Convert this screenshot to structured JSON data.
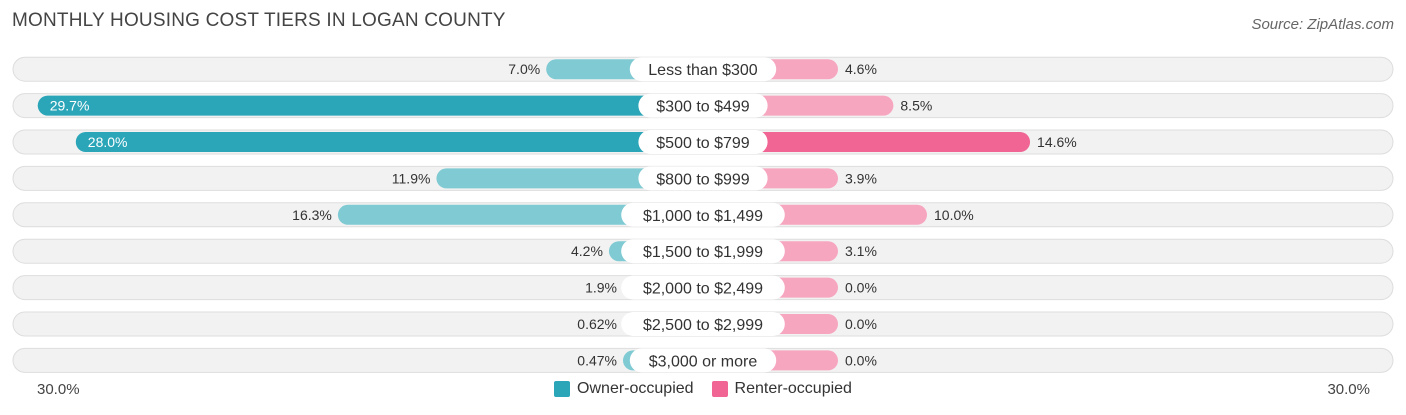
{
  "header": {
    "title": "MONTHLY HOUSING COST TIERS IN LOGAN COUNTY",
    "source": "Source: ZipAtlas.com"
  },
  "chart_data": {
    "type": "bar",
    "orientation": "horizontal-diverging",
    "title": "MONTHLY HOUSING COST TIERS IN LOGAN COUNTY",
    "categories": [
      "Less than $300",
      "$300 to $499",
      "$500 to $799",
      "$800 to $999",
      "$1,000 to $1,499",
      "$1,500 to $1,999",
      "$2,000 to $2,499",
      "$2,500 to $2,999",
      "$3,000 or more"
    ],
    "series": [
      {
        "name": "Owner-occupied",
        "color": "#2ba5b8",
        "light_color": "#7fcad3",
        "values": [
          7.0,
          29.7,
          28.0,
          11.9,
          16.3,
          4.2,
          1.9,
          0.62,
          0.47
        ],
        "labels": [
          "7.0%",
          "29.7%",
          "28.0%",
          "11.9%",
          "16.3%",
          "4.2%",
          "1.9%",
          "0.62%",
          "0.47%"
        ]
      },
      {
        "name": "Renter-occupied",
        "color": "#f06593",
        "light_color": "#f7a6c0",
        "values": [
          4.6,
          8.5,
          14.6,
          3.9,
          10.0,
          3.1,
          0.0,
          0.0,
          0.0
        ],
        "labels": [
          "4.6%",
          "8.5%",
          "14.6%",
          "3.9%",
          "10.0%",
          "3.1%",
          "0.0%",
          "0.0%",
          "0.0%"
        ]
      }
    ],
    "xlim": [
      -30,
      30
    ],
    "axis_left_label": "30.0%",
    "axis_right_label": "30.0%",
    "legend_position": "bottom-center"
  }
}
